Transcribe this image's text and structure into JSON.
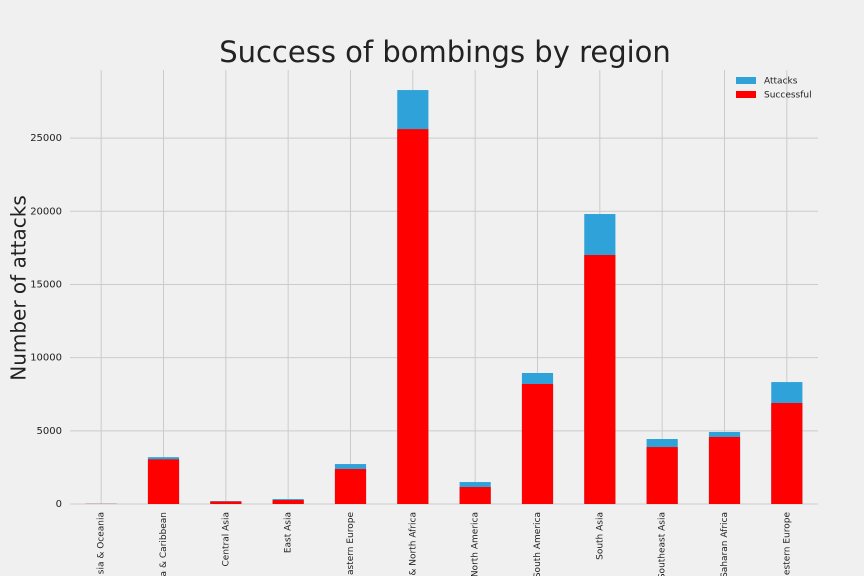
{
  "chart_data": {
    "type": "bar",
    "title": "Success of bombings by region",
    "y_label": "Number of attacks",
    "categories": [
      "sia & Oceania",
      "a & Caribbean",
      "Central Asia",
      "East Asia",
      "astern Europe",
      "& North Africa",
      "North America",
      "South America",
      "South Asia",
      "Southeast Asia",
      "Saharan Africa",
      "estern Europe"
    ],
    "series": [
      {
        "name": "Attacks",
        "color": "#30a2da",
        "values": [
          12,
          3200,
          200,
          340,
          2730,
          28280,
          1500,
          8950,
          19810,
          4440,
          4920,
          8330
        ]
      },
      {
        "name": "Successful",
        "color": "#ff0000",
        "values": [
          10,
          3050,
          170,
          270,
          2390,
          25610,
          1160,
          8200,
          17010,
          3890,
          4580,
          6900
        ]
      }
    ],
    "ylim": [
      0,
      29650
    ],
    "yticks": [
      0,
      5000,
      10000,
      15000,
      20000,
      25000
    ],
    "grid": true,
    "legend": "upper right"
  }
}
